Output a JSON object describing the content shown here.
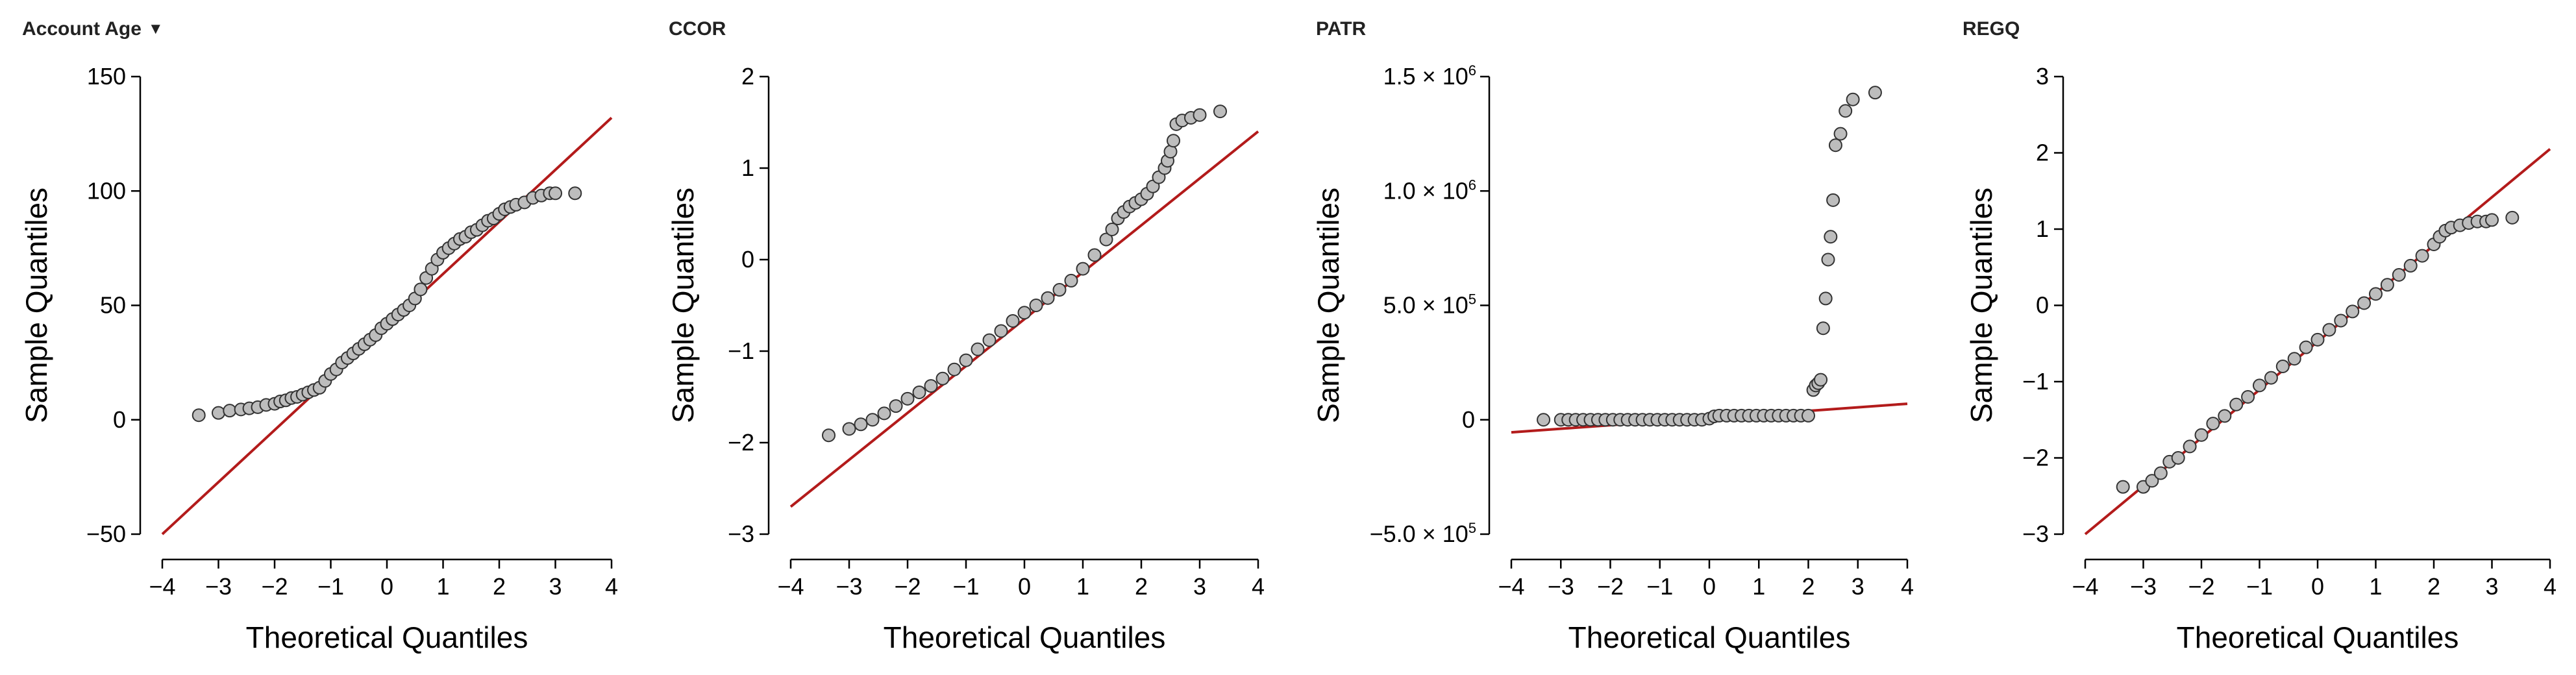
{
  "chart_data": [
    {
      "type": "scatter",
      "title": "Account Age",
      "has_dropdown": true,
      "xlabel": "Theoretical Quantiles",
      "ylabel": "Sample Quantiles",
      "xlim": [
        -4,
        4
      ],
      "ylim": [
        -50,
        150
      ],
      "x_ticks": [
        {
          "value": -4,
          "label": "−4"
        },
        {
          "value": -3,
          "label": "−3"
        },
        {
          "value": -2,
          "label": "−2"
        },
        {
          "value": -1,
          "label": "−1"
        },
        {
          "value": 0,
          "label": "0"
        },
        {
          "value": 1,
          "label": "1"
        },
        {
          "value": 2,
          "label": "2"
        },
        {
          "value": 3,
          "label": "3"
        },
        {
          "value": 4,
          "label": "4"
        }
      ],
      "y_ticks": [
        {
          "value": -50,
          "label": "−50"
        },
        {
          "value": 0,
          "label": "0"
        },
        {
          "value": 50,
          "label": "50"
        },
        {
          "value": 100,
          "label": "100"
        },
        {
          "value": 150,
          "label": "150"
        }
      ],
      "reference_line": {
        "from": [
          -4,
          -50
        ],
        "to": [
          4,
          132
        ],
        "color": "#b31b1b"
      },
      "points": [
        [
          -3.35,
          2
        ],
        [
          -3.0,
          3
        ],
        [
          -2.8,
          4
        ],
        [
          -2.6,
          4.5
        ],
        [
          -2.45,
          5
        ],
        [
          -2.3,
          5.5
        ],
        [
          -2.15,
          6.5
        ],
        [
          -2.0,
          7
        ],
        [
          -1.9,
          8
        ],
        [
          -1.8,
          8.5
        ],
        [
          -1.7,
          9.5
        ],
        [
          -1.6,
          10
        ],
        [
          -1.5,
          11
        ],
        [
          -1.4,
          12
        ],
        [
          -1.3,
          13
        ],
        [
          -1.2,
          14
        ],
        [
          -1.1,
          17
        ],
        [
          -1.0,
          20
        ],
        [
          -0.9,
          22
        ],
        [
          -0.8,
          25
        ],
        [
          -0.7,
          27
        ],
        [
          -0.6,
          29
        ],
        [
          -0.5,
          31
        ],
        [
          -0.4,
          33
        ],
        [
          -0.3,
          35
        ],
        [
          -0.2,
          37
        ],
        [
          -0.1,
          40
        ],
        [
          0.0,
          42
        ],
        [
          0.1,
          44
        ],
        [
          0.2,
          46
        ],
        [
          0.3,
          48
        ],
        [
          0.4,
          50
        ],
        [
          0.5,
          53
        ],
        [
          0.6,
          57
        ],
        [
          0.7,
          62
        ],
        [
          0.8,
          66
        ],
        [
          0.9,
          70
        ],
        [
          1.0,
          73
        ],
        [
          1.1,
          75
        ],
        [
          1.2,
          77
        ],
        [
          1.3,
          79
        ],
        [
          1.4,
          80
        ],
        [
          1.5,
          82
        ],
        [
          1.6,
          83
        ],
        [
          1.7,
          85
        ],
        [
          1.8,
          87
        ],
        [
          1.9,
          88
        ],
        [
          2.0,
          90
        ],
        [
          2.1,
          92
        ],
        [
          2.2,
          93
        ],
        [
          2.3,
          94
        ],
        [
          2.45,
          95
        ],
        [
          2.6,
          97
        ],
        [
          2.75,
          98
        ],
        [
          2.9,
          99
        ],
        [
          3.0,
          99
        ],
        [
          3.35,
          99
        ]
      ]
    },
    {
      "type": "scatter",
      "title": "CCOR",
      "has_dropdown": false,
      "xlabel": "Theoretical Quantiles",
      "ylabel": "Sample Quantiles",
      "xlim": [
        -4,
        4
      ],
      "ylim": [
        -3,
        2
      ],
      "x_ticks": [
        {
          "value": -4,
          "label": "−4"
        },
        {
          "value": -3,
          "label": "−3"
        },
        {
          "value": -2,
          "label": "−2"
        },
        {
          "value": -1,
          "label": "−1"
        },
        {
          "value": 0,
          "label": "0"
        },
        {
          "value": 1,
          "label": "1"
        },
        {
          "value": 2,
          "label": "2"
        },
        {
          "value": 3,
          "label": "3"
        },
        {
          "value": 4,
          "label": "4"
        }
      ],
      "y_ticks": [
        {
          "value": -3,
          "label": "−3"
        },
        {
          "value": -2,
          "label": "−2"
        },
        {
          "value": -1,
          "label": "−1"
        },
        {
          "value": 0,
          "label": "0"
        },
        {
          "value": 1,
          "label": "1"
        },
        {
          "value": 2,
          "label": "2"
        }
      ],
      "reference_line": {
        "from": [
          -4,
          -2.7
        ],
        "to": [
          4,
          1.4
        ],
        "color": "#b31b1b"
      },
      "points": [
        [
          -3.35,
          -1.92
        ],
        [
          -3.0,
          -1.85
        ],
        [
          -2.8,
          -1.8
        ],
        [
          -2.6,
          -1.75
        ],
        [
          -2.4,
          -1.68
        ],
        [
          -2.2,
          -1.6
        ],
        [
          -2.0,
          -1.52
        ],
        [
          -1.8,
          -1.45
        ],
        [
          -1.6,
          -1.38
        ],
        [
          -1.4,
          -1.3
        ],
        [
          -1.2,
          -1.2
        ],
        [
          -1.0,
          -1.1
        ],
        [
          -0.8,
          -0.98
        ],
        [
          -0.6,
          -0.88
        ],
        [
          -0.4,
          -0.78
        ],
        [
          -0.2,
          -0.67
        ],
        [
          0.0,
          -0.58
        ],
        [
          0.2,
          -0.5
        ],
        [
          0.4,
          -0.42
        ],
        [
          0.6,
          -0.33
        ],
        [
          0.8,
          -0.23
        ],
        [
          1.0,
          -0.1
        ],
        [
          1.2,
          0.05
        ],
        [
          1.4,
          0.22
        ],
        [
          1.5,
          0.33
        ],
        [
          1.6,
          0.45
        ],
        [
          1.7,
          0.52
        ],
        [
          1.8,
          0.58
        ],
        [
          1.9,
          0.62
        ],
        [
          2.0,
          0.66
        ],
        [
          2.1,
          0.72
        ],
        [
          2.2,
          0.8
        ],
        [
          2.3,
          0.9
        ],
        [
          2.4,
          1.0
        ],
        [
          2.45,
          1.08
        ],
        [
          2.5,
          1.18
        ],
        [
          2.55,
          1.3
        ],
        [
          2.6,
          1.48
        ],
        [
          2.7,
          1.52
        ],
        [
          2.85,
          1.55
        ],
        [
          3.0,
          1.58
        ],
        [
          3.35,
          1.62
        ]
      ]
    },
    {
      "type": "scatter",
      "title": "PATR",
      "has_dropdown": false,
      "xlabel": "Theoretical Quantiles",
      "ylabel": "Sample Quantiles",
      "xlim": [
        -4,
        4
      ],
      "ylim": [
        -500000,
        1500000
      ],
      "x_ticks": [
        {
          "value": -4,
          "label": "−4"
        },
        {
          "value": -3,
          "label": "−3"
        },
        {
          "value": -2,
          "label": "−2"
        },
        {
          "value": -1,
          "label": "−1"
        },
        {
          "value": 0,
          "label": "0"
        },
        {
          "value": 1,
          "label": "1"
        },
        {
          "value": 2,
          "label": "2"
        },
        {
          "value": 3,
          "label": "3"
        },
        {
          "value": 4,
          "label": "4"
        }
      ],
      "y_ticks": [
        {
          "value": -500000,
          "label": "−5.0 × 10",
          "exp": "5"
        },
        {
          "value": 0,
          "label": "0"
        },
        {
          "value": 500000,
          "label": "5.0 × 10",
          "exp": "5"
        },
        {
          "value": 1000000,
          "label": "1.0 × 10",
          "exp": "6"
        },
        {
          "value": 1500000,
          "label": "1.5 × 10",
          "exp": "6"
        }
      ],
      "reference_line": {
        "from": [
          -4,
          -55000
        ],
        "to": [
          4,
          70000
        ],
        "color": "#b31b1b"
      },
      "points": [
        [
          -3.35,
          0
        ],
        [
          -3.0,
          0
        ],
        [
          -2.85,
          0
        ],
        [
          -2.7,
          0
        ],
        [
          -2.55,
          0
        ],
        [
          -2.4,
          0
        ],
        [
          -2.25,
          0
        ],
        [
          -2.1,
          0
        ],
        [
          -1.95,
          0
        ],
        [
          -1.8,
          0
        ],
        [
          -1.65,
          0
        ],
        [
          -1.5,
          0
        ],
        [
          -1.35,
          0
        ],
        [
          -1.2,
          0
        ],
        [
          -1.05,
          0
        ],
        [
          -0.9,
          0
        ],
        [
          -0.75,
          0
        ],
        [
          -0.6,
          0
        ],
        [
          -0.45,
          0
        ],
        [
          -0.3,
          0
        ],
        [
          -0.15,
          0
        ],
        [
          0.0,
          5000
        ],
        [
          0.1,
          15000
        ],
        [
          0.2,
          18000
        ],
        [
          0.35,
          18000
        ],
        [
          0.5,
          18000
        ],
        [
          0.65,
          18000
        ],
        [
          0.8,
          18000
        ],
        [
          0.95,
          18000
        ],
        [
          1.1,
          18000
        ],
        [
          1.25,
          18000
        ],
        [
          1.4,
          18000
        ],
        [
          1.55,
          18000
        ],
        [
          1.7,
          18000
        ],
        [
          1.85,
          18000
        ],
        [
          2.0,
          18000
        ],
        [
          2.1,
          130000
        ],
        [
          2.15,
          150000
        ],
        [
          2.2,
          160000
        ],
        [
          2.25,
          175000
        ],
        [
          2.3,
          400000
        ],
        [
          2.35,
          530000
        ],
        [
          2.4,
          700000
        ],
        [
          2.45,
          800000
        ],
        [
          2.5,
          960000
        ],
        [
          2.55,
          1200000
        ],
        [
          2.65,
          1250000
        ],
        [
          2.75,
          1350000
        ],
        [
          2.9,
          1400000
        ],
        [
          3.35,
          1430000
        ]
      ]
    },
    {
      "type": "scatter",
      "title": "REGQ",
      "has_dropdown": false,
      "xlabel": "Theoretical Quantiles",
      "ylabel": "Sample Quantiles",
      "xlim": [
        -4,
        4
      ],
      "ylim": [
        -3,
        3
      ],
      "x_ticks": [
        {
          "value": -4,
          "label": "−4"
        },
        {
          "value": -3,
          "label": "−3"
        },
        {
          "value": -2,
          "label": "−2"
        },
        {
          "value": -1,
          "label": "−1"
        },
        {
          "value": 0,
          "label": "0"
        },
        {
          "value": 1,
          "label": "1"
        },
        {
          "value": 2,
          "label": "2"
        },
        {
          "value": 3,
          "label": "3"
        },
        {
          "value": 4,
          "label": "4"
        }
      ],
      "y_ticks": [
        {
          "value": -3,
          "label": "−3"
        },
        {
          "value": -2,
          "label": "−2"
        },
        {
          "value": -1,
          "label": "−1"
        },
        {
          "value": 0,
          "label": "0"
        },
        {
          "value": 1,
          "label": "1"
        },
        {
          "value": 2,
          "label": "2"
        },
        {
          "value": 3,
          "label": "3"
        }
      ],
      "reference_line": {
        "from": [
          -4,
          -3
        ],
        "to": [
          4,
          2.05
        ],
        "color": "#b31b1b"
      },
      "points": [
        [
          -3.35,
          -2.38
        ],
        [
          -3.0,
          -2.38
        ],
        [
          -2.85,
          -2.3
        ],
        [
          -2.7,
          -2.2
        ],
        [
          -2.55,
          -2.05
        ],
        [
          -2.4,
          -2.0
        ],
        [
          -2.2,
          -1.85
        ],
        [
          -2.0,
          -1.7
        ],
        [
          -1.8,
          -1.55
        ],
        [
          -1.6,
          -1.45
        ],
        [
          -1.4,
          -1.3
        ],
        [
          -1.2,
          -1.2
        ],
        [
          -1.0,
          -1.05
        ],
        [
          -0.8,
          -0.95
        ],
        [
          -0.6,
          -0.8
        ],
        [
          -0.4,
          -0.7
        ],
        [
          -0.2,
          -0.55
        ],
        [
          0.0,
          -0.45
        ],
        [
          0.2,
          -0.32
        ],
        [
          0.4,
          -0.2
        ],
        [
          0.6,
          -0.08
        ],
        [
          0.8,
          0.03
        ],
        [
          1.0,
          0.15
        ],
        [
          1.2,
          0.27
        ],
        [
          1.4,
          0.4
        ],
        [
          1.6,
          0.52
        ],
        [
          1.8,
          0.65
        ],
        [
          2.0,
          0.8
        ],
        [
          2.1,
          0.9
        ],
        [
          2.2,
          0.98
        ],
        [
          2.3,
          1.02
        ],
        [
          2.45,
          1.05
        ],
        [
          2.6,
          1.08
        ],
        [
          2.75,
          1.1
        ],
        [
          2.9,
          1.1
        ],
        [
          3.0,
          1.12
        ],
        [
          3.35,
          1.15
        ]
      ]
    }
  ]
}
